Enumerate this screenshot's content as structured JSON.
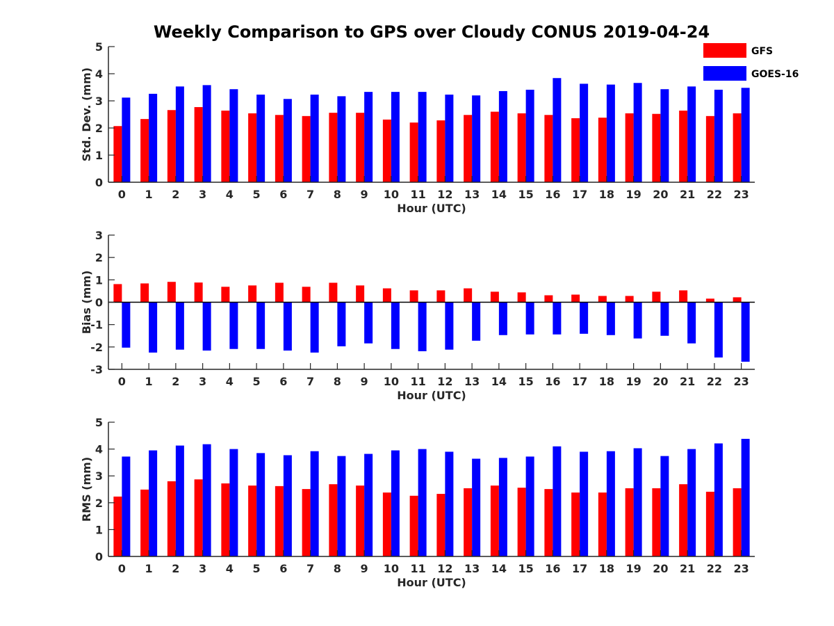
{
  "title": "Weekly Comparison to GPS over Cloudy CONUS 2019-04-24",
  "colors": {
    "GFS": "#ff0000",
    "GOES-16": "#0000ff",
    "axis": "#262626"
  },
  "legend": {
    "placement": "top-right",
    "entries": [
      {
        "label": "GFS",
        "color": "#ff0000"
      },
      {
        "label": "GOES-16",
        "color": "#0000ff"
      }
    ]
  },
  "chart_data": [
    {
      "type": "bar",
      "xlabel": "Hour (UTC)",
      "ylabel": "Std. Dev. (mm)",
      "ylim": [
        0,
        5
      ],
      "yticks": [
        0,
        1,
        2,
        3,
        4,
        5
      ],
      "categories": [
        "0",
        "1",
        "2",
        "3",
        "4",
        "5",
        "6",
        "7",
        "8",
        "9",
        "10",
        "11",
        "12",
        "13",
        "14",
        "15",
        "16",
        "17",
        "18",
        "19",
        "20",
        "21",
        "22",
        "23"
      ],
      "series": [
        {
          "name": "GFS",
          "values": [
            2.07,
            2.33,
            2.66,
            2.77,
            2.64,
            2.54,
            2.48,
            2.44,
            2.56,
            2.56,
            2.31,
            2.2,
            2.28,
            2.48,
            2.6,
            2.54,
            2.48,
            2.36,
            2.38,
            2.54,
            2.52,
            2.64,
            2.44,
            2.54
          ]
        },
        {
          "name": "GOES-16",
          "values": [
            3.12,
            3.26,
            3.53,
            3.58,
            3.43,
            3.23,
            3.07,
            3.23,
            3.17,
            3.33,
            3.33,
            3.33,
            3.23,
            3.2,
            3.36,
            3.41,
            3.84,
            3.63,
            3.6,
            3.66,
            3.43,
            3.53,
            3.41,
            3.48
          ]
        }
      ]
    },
    {
      "type": "bar",
      "xlabel": "Hour (UTC)",
      "ylabel": "Bias (mm)",
      "ylim": [
        -3,
        3
      ],
      "yticks": [
        -3,
        -2,
        -1,
        0,
        1,
        2,
        3
      ],
      "categories": [
        "0",
        "1",
        "2",
        "3",
        "4",
        "5",
        "6",
        "7",
        "8",
        "9",
        "10",
        "11",
        "12",
        "13",
        "14",
        "15",
        "16",
        "17",
        "18",
        "19",
        "20",
        "21",
        "22",
        "23"
      ],
      "series": [
        {
          "name": "GFS",
          "values": [
            0.81,
            0.84,
            0.91,
            0.88,
            0.69,
            0.75,
            0.87,
            0.69,
            0.87,
            0.75,
            0.62,
            0.53,
            0.53,
            0.62,
            0.47,
            0.44,
            0.31,
            0.34,
            0.28,
            0.28,
            0.47,
            0.53,
            0.16,
            0.22
          ]
        },
        {
          "name": "GOES-16",
          "values": [
            -2.03,
            -2.25,
            -2.12,
            -2.16,
            -2.09,
            -2.09,
            -2.16,
            -2.25,
            -1.97,
            -1.84,
            -2.09,
            -2.19,
            -2.12,
            -1.72,
            -1.47,
            -1.44,
            -1.44,
            -1.41,
            -1.47,
            -1.62,
            -1.5,
            -1.84,
            -2.47,
            -2.66
          ]
        }
      ]
    },
    {
      "type": "bar",
      "xlabel": "Hour (UTC)",
      "ylabel": "RMS (mm)",
      "ylim": [
        0,
        5
      ],
      "yticks": [
        0,
        1,
        2,
        3,
        4,
        5
      ],
      "categories": [
        "0",
        "1",
        "2",
        "3",
        "4",
        "5",
        "6",
        "7",
        "8",
        "9",
        "10",
        "11",
        "12",
        "13",
        "14",
        "15",
        "16",
        "17",
        "18",
        "19",
        "20",
        "21",
        "22",
        "23"
      ],
      "series": [
        {
          "name": "GFS",
          "values": [
            2.23,
            2.49,
            2.8,
            2.87,
            2.72,
            2.64,
            2.62,
            2.51,
            2.69,
            2.64,
            2.38,
            2.26,
            2.33,
            2.54,
            2.64,
            2.56,
            2.51,
            2.38,
            2.38,
            2.54,
            2.54,
            2.69,
            2.41,
            2.54
          ]
        },
        {
          "name": "GOES-16",
          "values": [
            3.72,
            3.95,
            4.13,
            4.18,
            4.0,
            3.85,
            3.77,
            3.92,
            3.74,
            3.82,
            3.95,
            4.0,
            3.9,
            3.64,
            3.67,
            3.72,
            4.1,
            3.9,
            3.92,
            4.03,
            3.74,
            4.0,
            4.21,
            4.38
          ]
        }
      ]
    }
  ]
}
